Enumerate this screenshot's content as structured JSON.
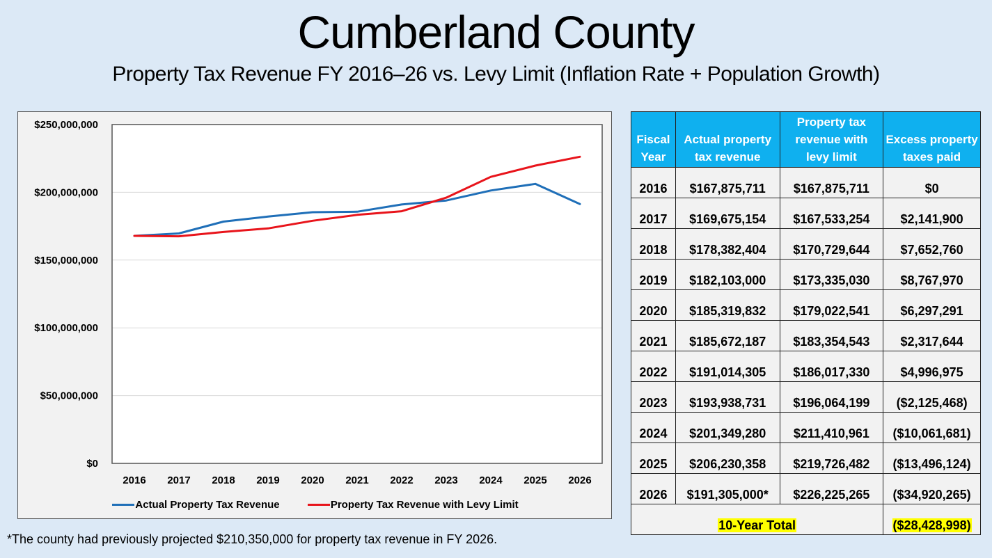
{
  "header": {
    "title": "Cumberland County",
    "subtitle": "Property Tax Revenue FY 2016–26 vs. Levy Limit (Inflation Rate + Population Growth)"
  },
  "chart_data": {
    "type": "line",
    "title": "",
    "xlabel": "",
    "ylabel": "",
    "x": [
      "2016",
      "2017",
      "2018",
      "2019",
      "2020",
      "2021",
      "2022",
      "2023",
      "2024",
      "2025",
      "2026"
    ],
    "ylim": [
      0,
      250000000
    ],
    "yticks": [
      0,
      50000000,
      100000000,
      150000000,
      200000000,
      250000000
    ],
    "ytick_labels": [
      "$0",
      "$50,000,000",
      "$100,000,000",
      "$150,000,000",
      "$200,000,000",
      "$250,000,000"
    ],
    "grid": true,
    "legend_position": "bottom",
    "series": [
      {
        "name": "Actual Property Tax Revenue",
        "color": "#1f6fb8",
        "values": [
          167875711,
          169675154,
          178382404,
          182103000,
          185319832,
          185672187,
          191014305,
          193938731,
          201349280,
          206230358,
          191305000
        ]
      },
      {
        "name": "Property Tax Revenue with Levy Limit",
        "color": "#e8141b",
        "values": [
          167875711,
          167533254,
          170729644,
          173335030,
          179022541,
          183354543,
          186017330,
          196064199,
          211410961,
          219726482,
          226225265
        ]
      }
    ]
  },
  "table": {
    "headers": [
      "Fiscal Year",
      "Actual property tax revenue",
      "Property tax revenue with levy limit",
      "Excess property taxes paid"
    ],
    "header_lines": [
      [
        "Fiscal",
        "Year"
      ],
      [
        "Actual property",
        "tax revenue"
      ],
      [
        "Property tax",
        "revenue with",
        "levy limit"
      ],
      [
        "Excess property",
        "taxes paid"
      ]
    ],
    "rows": [
      [
        "2016",
        "$167,875,711",
        "$167,875,711",
        "$0"
      ],
      [
        "2017",
        "$169,675,154",
        "$167,533,254",
        "$2,141,900"
      ],
      [
        "2018",
        "$178,382,404",
        "$170,729,644",
        "$7,652,760"
      ],
      [
        "2019",
        "$182,103,000",
        "$173,335,030",
        "$8,767,970"
      ],
      [
        "2020",
        "$185,319,832",
        "$179,022,541",
        "$6,297,291"
      ],
      [
        "2021",
        "$185,672,187",
        "$183,354,543",
        "$2,317,644"
      ],
      [
        "2022",
        "$191,014,305",
        "$186,017,330",
        "$4,996,975"
      ],
      [
        "2023",
        "$193,938,731",
        "$196,064,199",
        "($2,125,468)"
      ],
      [
        "2024",
        "$201,349,280",
        "$211,410,961",
        "($10,061,681)"
      ],
      [
        "2025",
        "$206,230,358",
        "$219,726,482",
        "($13,496,124)"
      ],
      [
        "2026",
        "$191,305,000*",
        "$226,225,265",
        "($34,920,265)"
      ]
    ],
    "total_label": "10-Year Total",
    "total_value": "($28,428,998)",
    "header_color": "#0fb0ef",
    "highlight_color": "#ffff00"
  },
  "footnote": "*The county had previously projected $210,350,000 for property tax revenue in FY 2026."
}
